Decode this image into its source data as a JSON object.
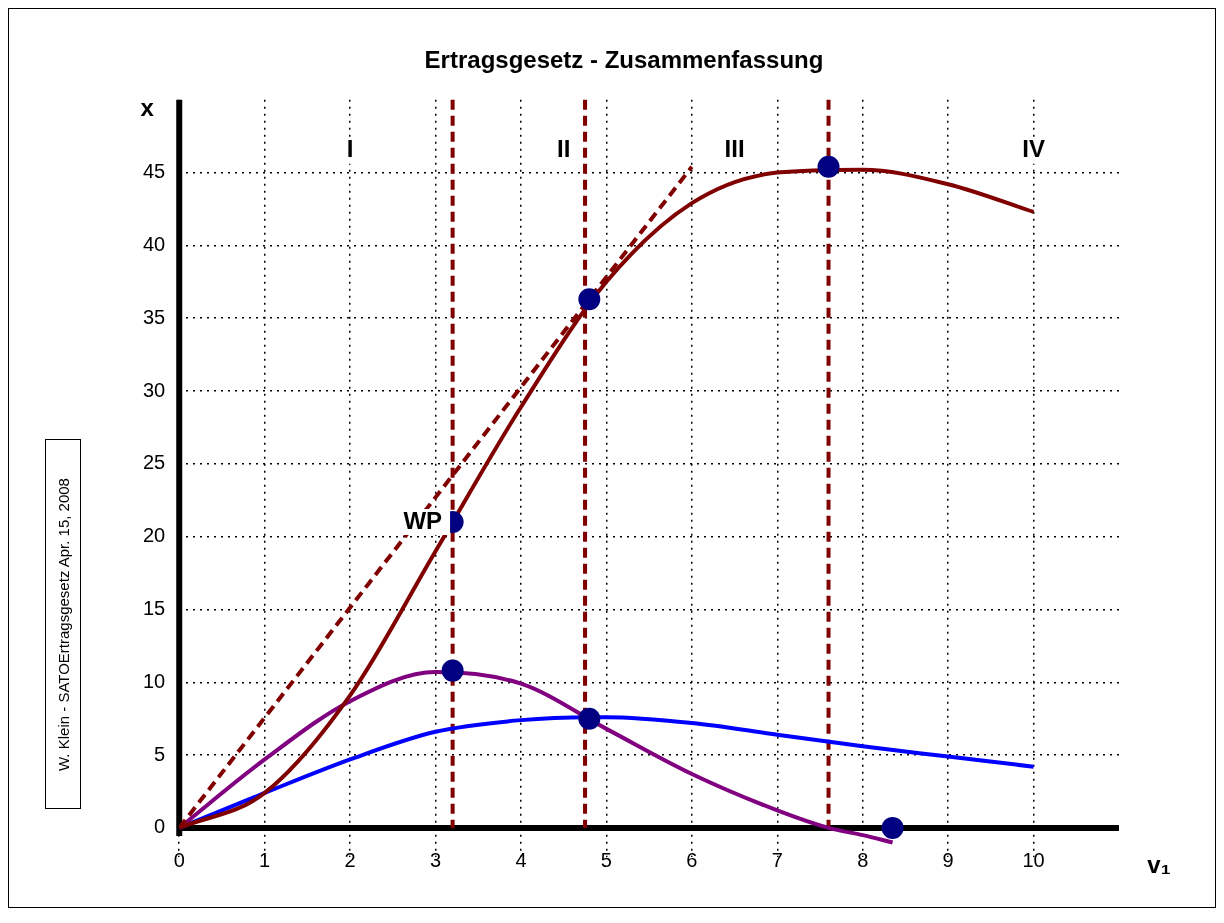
{
  "chart_data": {
    "type": "line",
    "title": "Ertragsgesetz - Zusammenfassung",
    "xlabel": "v₁",
    "ylabel": "x",
    "xlim": [
      0,
      11
    ],
    "ylim": [
      -2,
      50
    ],
    "xticks": [
      0,
      1,
      2,
      3,
      4,
      5,
      6,
      7,
      8,
      9,
      10
    ],
    "yticks": [
      0,
      5,
      10,
      15,
      20,
      25,
      30,
      35,
      40,
      45
    ],
    "grid": true,
    "legend": false,
    "series": [
      {
        "color": "#800000",
        "line_style": "solid",
        "marker": "none",
        "x": [
          0,
          1,
          2,
          3,
          4,
          5,
          6,
          7,
          8,
          9,
          10
        ],
        "values": [
          0,
          2.4,
          9.1,
          19,
          28.9,
          37.5,
          42.9,
          45,
          45.2,
          44.2,
          42.3
        ]
      },
      {
        "color": "#800000",
        "line_style": "dashed",
        "marker": "none",
        "x": [
          0,
          6
        ],
        "values": [
          0,
          45.4
        ]
      },
      {
        "color": "#800080",
        "line_style": "solid",
        "marker": "none",
        "x": [
          0,
          1,
          2,
          3,
          4,
          5,
          6,
          7,
          7.6,
          8,
          8.35
        ],
        "values": [
          0,
          4.7,
          8.7,
          10.7,
          9.9,
          6.8,
          3.7,
          1.2,
          0,
          -0.5,
          -1
        ]
      },
      {
        "color": "#0000ff",
        "line_style": "solid",
        "marker": "none",
        "x": [
          0,
          1,
          2,
          3,
          4,
          4.8,
          5,
          6,
          7,
          8,
          9,
          10
        ],
        "values": [
          0,
          2.4,
          4.7,
          6.6,
          7.4,
          7.6,
          7.6,
          7.2,
          6.4,
          5.6,
          4.9,
          4.2
        ]
      },
      {
        "type": "scatter",
        "color": "#000080",
        "marker": "circle",
        "x": [
          3.2,
          4.8,
          7.6,
          3.2,
          4.8,
          8.35
        ],
        "values": [
          21,
          36.3,
          45.4,
          10.8,
          7.5,
          0
        ]
      }
    ],
    "ref_lines": [
      {
        "axis": "x",
        "value": 3.2,
        "color": "#800000",
        "line_style": "dashed"
      },
      {
        "axis": "x",
        "value": 4.75,
        "color": "#800000",
        "line_style": "dashed"
      },
      {
        "axis": "x",
        "value": 7.6,
        "color": "#800000",
        "line_style": "dashed"
      }
    ],
    "annotations": [
      {
        "text": "I",
        "x": 2,
        "y": 46.5
      },
      {
        "text": "II",
        "x": 4.5,
        "y": 46.5
      },
      {
        "text": "III",
        "x": 6.5,
        "y": 46.5
      },
      {
        "text": "IV",
        "x": 10,
        "y": 46.5
      },
      {
        "text": "WP",
        "x": 2.85,
        "y": 21
      },
      "W. Klein - SATOErtragsgesetz  Apr. 15, 2008"
    ]
  }
}
